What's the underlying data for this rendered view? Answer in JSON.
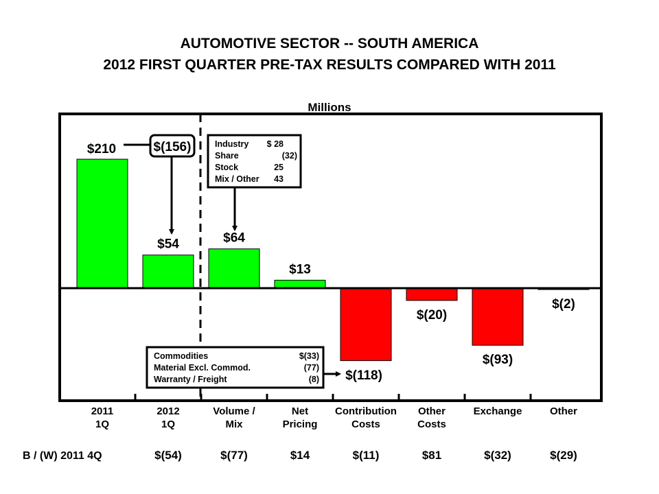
{
  "chart_data": {
    "type": "bar",
    "title": [
      "AUTOMOTIVE SECTOR -- SOUTH AMERICA",
      "2012 FIRST QUARTER PRE-TAX RESULTS COMPARED WITH 2011"
    ],
    "ylabel": "Millions",
    "categories": [
      [
        "2011",
        "1Q"
      ],
      [
        "2012",
        "1Q"
      ],
      [
        "Volume /",
        "Mix"
      ],
      [
        "Net",
        "Pricing"
      ],
      [
        "Contribution",
        "Costs"
      ],
      [
        "Other",
        "Costs"
      ],
      [
        "Exchange",
        ""
      ],
      [
        "Other",
        ""
      ]
    ],
    "values": [
      210,
      54,
      64,
      13,
      -118,
      -20,
      -93,
      -2
    ],
    "value_labels": [
      "$210",
      "$54",
      "$64",
      "$13",
      "$(118)",
      "$(20)",
      "$(93)",
      "$(2)"
    ],
    "colors": {
      "positive": "#00ff00",
      "negative": "#ff0000"
    },
    "ylim": [
      -180,
      285
    ],
    "grid": false,
    "change_label": "$(156)",
    "volume_breakdown": [
      {
        "label": "Industry",
        "value": "$ 28"
      },
      {
        "label": "Share",
        "value": "(32)"
      },
      {
        "label": "Stock",
        "value": "25"
      },
      {
        "label": "Mix / Other",
        "value": "43"
      }
    ],
    "contribution_breakdown": [
      {
        "label": "Commodities",
        "value": "$(33)"
      },
      {
        "label": "Material Excl. Commod.",
        "value": "(77)"
      },
      {
        "label": "Warranty / Freight",
        "value": "(8)"
      }
    ],
    "comparison_row": {
      "label": "B / (W) 2011 4Q",
      "values": [
        "$(54)",
        "$(77)",
        "$14",
        "$(11)",
        "$81",
        "$(32)",
        "$(29)"
      ]
    }
  }
}
